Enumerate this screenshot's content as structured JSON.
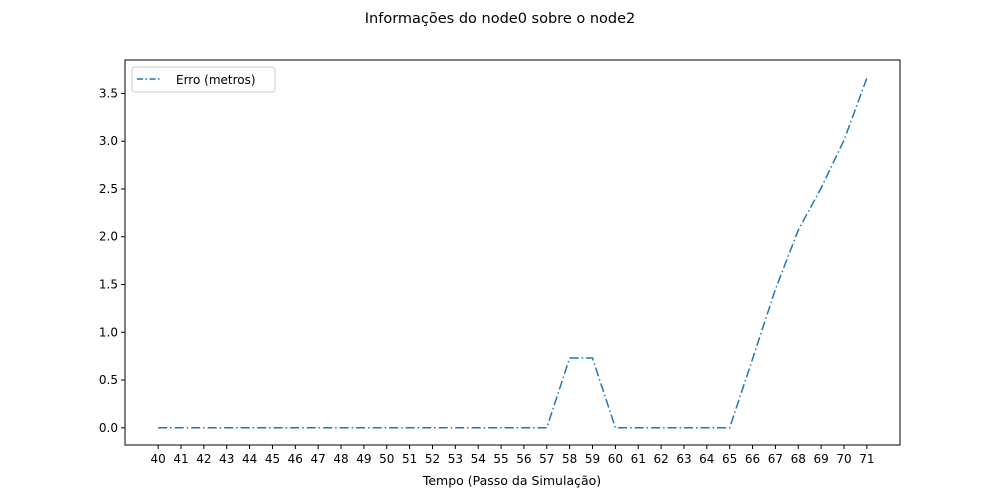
{
  "chart_data": {
    "type": "line",
    "title": "Informações do node0 sobre o node2",
    "xlabel": "Tempo (Passo da Simulação)",
    "ylabel": "",
    "x": [
      40,
      41,
      42,
      43,
      44,
      45,
      46,
      47,
      48,
      49,
      50,
      51,
      52,
      53,
      54,
      55,
      56,
      57,
      58,
      59,
      60,
      61,
      62,
      63,
      64,
      65,
      66,
      67,
      68,
      69,
      70,
      71
    ],
    "xlim": [
      38.55,
      72.45
    ],
    "ylim": [
      -0.18,
      3.85
    ],
    "yticks": [
      0.0,
      0.5,
      1.0,
      1.5,
      2.0,
      2.5,
      3.0,
      3.5
    ],
    "ytick_labels": [
      "0.0",
      "0.5",
      "1.0",
      "1.5",
      "2.0",
      "2.5",
      "3.0",
      "3.5"
    ],
    "grid": false,
    "legend_position": "upper-left",
    "series": [
      {
        "name": "Erro (metros)",
        "color": "#1f77b4",
        "linestyle": "dashdot",
        "values": [
          0,
          0,
          0,
          0,
          0,
          0,
          0,
          0,
          0,
          0,
          0,
          0,
          0,
          0,
          0,
          0,
          0,
          0,
          0.73,
          0.73,
          0,
          0,
          0,
          0,
          0,
          0,
          0.72,
          1.45,
          2.07,
          2.51,
          3.01,
          3.66
        ]
      }
    ]
  }
}
